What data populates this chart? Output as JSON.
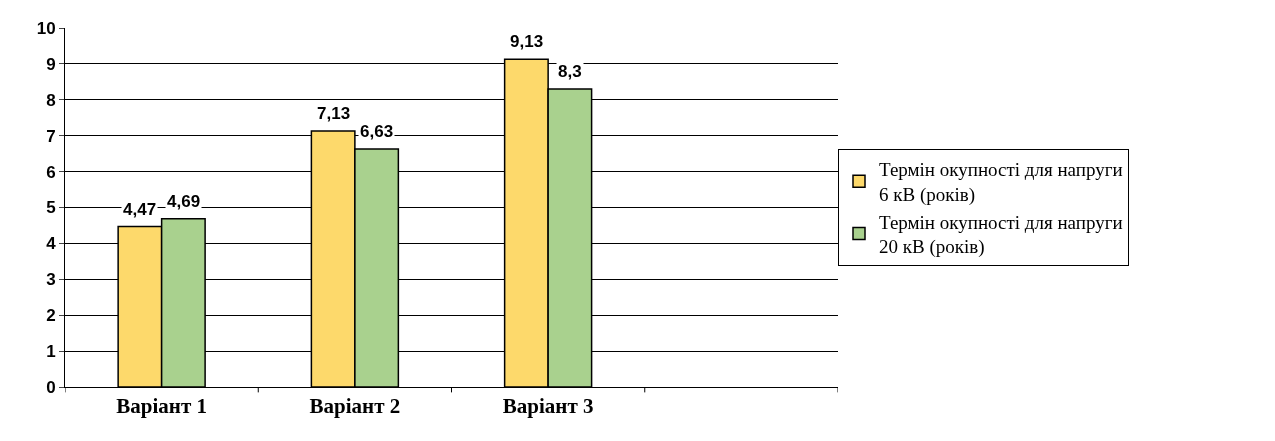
{
  "chart_data": {
    "type": "bar",
    "categories": [
      "Варіант 1",
      "Варіант 2",
      "Варіант 3",
      null
    ],
    "series": [
      {
        "name": "Термін окупності для напруги 6 кВ (років)",
        "color": "#fdd96b",
        "values": [
          4.47,
          7.13,
          9.13,
          null
        ],
        "value_labels": [
          "4,47",
          "7,13",
          "9,13",
          null
        ]
      },
      {
        "name": "Термін окупності для напруги 20 кВ (років)",
        "color": "#a9d18e",
        "values": [
          4.69,
          6.63,
          8.3,
          null
        ],
        "value_labels": [
          "4,69",
          "6,63",
          "8,3",
          null
        ]
      }
    ],
    "ylim": [
      0,
      10
    ],
    "yticks": [
      0,
      1,
      2,
      3,
      4,
      5,
      6,
      7,
      8,
      9,
      10
    ],
    "grid": "y",
    "legend": "right"
  }
}
